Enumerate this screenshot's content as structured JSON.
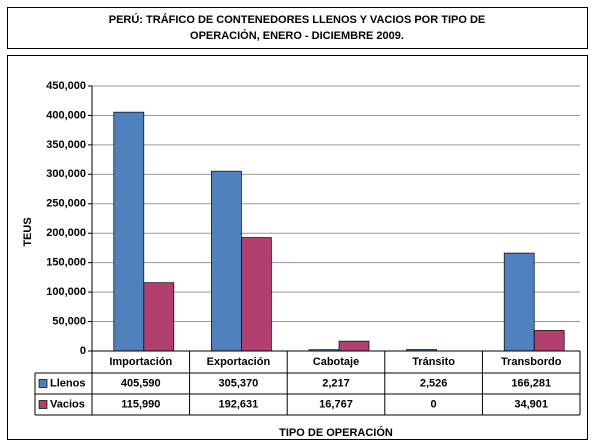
{
  "chart_data": {
    "type": "bar",
    "title": [
      "PERÚ: TRÁFICO DE CONTENEDORES LLENOS Y VACIOS POR TIPO DE",
      "OPERACIÓN, ENERO - DICIEMBRE 2009."
    ],
    "y_label": "TEUS",
    "x_label": "TIPO DE OPERACIÓN",
    "categories": [
      "Importación",
      "Exportación",
      "Cabotaje",
      "Tránsito",
      "Transbordo"
    ],
    "series": [
      {
        "name": "Llenos",
        "color": "#4f81bd",
        "values": [
          405590,
          305370,
          2217,
          2526,
          166281
        ],
        "value_labels": [
          "405,590",
          "305,370",
          "2,217",
          "2,526",
          "166,281"
        ]
      },
      {
        "name": "Vacios",
        "color": "#b2406f",
        "values": [
          115990,
          192631,
          16767,
          0,
          34901
        ],
        "value_labels": [
          "115,990",
          "192,631",
          "16,767",
          "0",
          "34,901"
        ]
      }
    ],
    "ylim": [
      0,
      450000
    ],
    "yticks": [
      0,
      {
        "value": 50000,
        "label": "50,000"
      },
      {
        "value": 100000,
        "label": "100,000"
      },
      {
        "value": 150000,
        "label": "150,000"
      },
      {
        "value": 200000,
        "label": "200,000"
      },
      {
        "value": 250000,
        "label": "250,000"
      },
      {
        "value": 300000,
        "label": "300,000"
      },
      {
        "value": 350000,
        "label": "350,000"
      },
      {
        "value": 400000,
        "label": "400,000"
      },
      {
        "value": 450000,
        "label": "450,000"
      }
    ],
    "grid": true
  }
}
